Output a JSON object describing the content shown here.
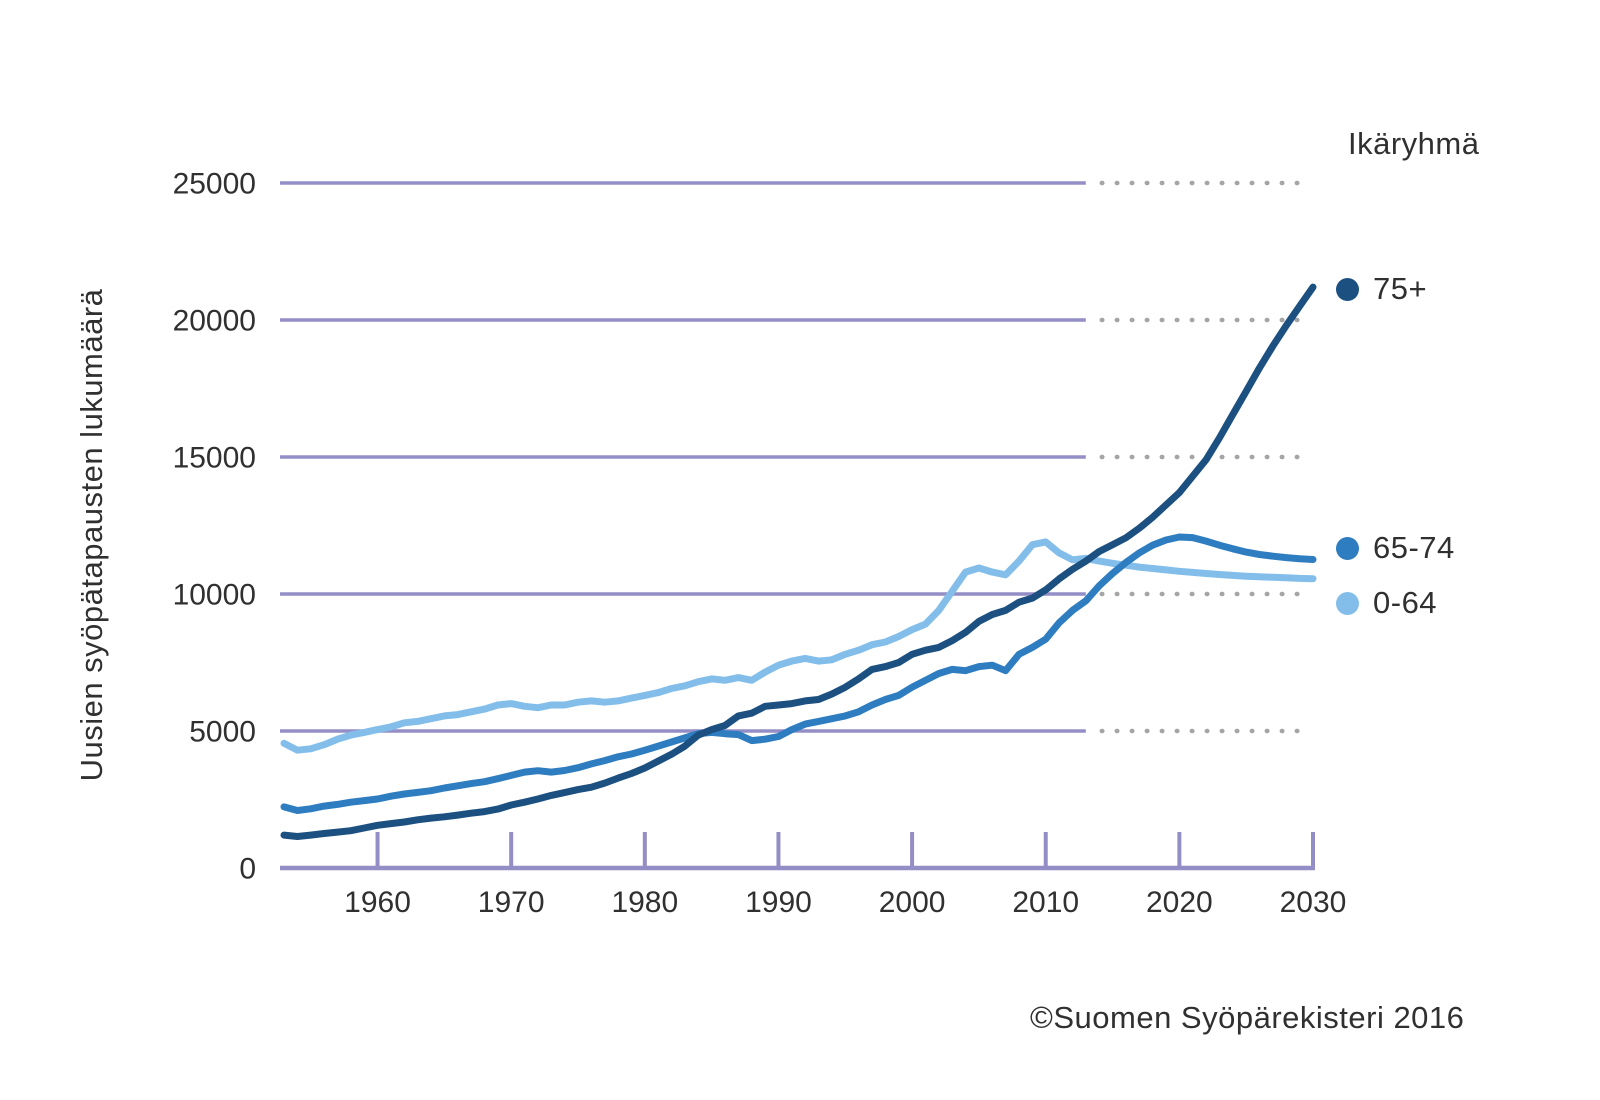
{
  "footer": {
    "copyright": "©Suomen Syöpärekisteri 2016"
  },
  "chart_data": {
    "type": "line",
    "title": "",
    "ylabel": "Uusien syöpätapausten lukumäärä",
    "legend_title": "Ikäryhmä",
    "legend_position": "right",
    "grid": "horizontal",
    "x_range": [
      1953,
      2030
    ],
    "observed_until": 2013,
    "x_ticks": [
      1960,
      1970,
      1980,
      1990,
      2000,
      2010,
      2020,
      2030
    ],
    "y_ticks": [
      0,
      5000,
      10000,
      15000,
      20000,
      25000
    ],
    "ylim": [
      0,
      25000
    ],
    "colors": {
      "grid_solid": "#938EC5",
      "grid_projection_dots": "#A5A5A5",
      "axis": "#938EC5",
      "text": "#303030"
    },
    "series": [
      {
        "name": "75+",
        "key": "75plus",
        "color": "#1B5080",
        "values": [
          1200,
          1150,
          1200,
          1260,
          1310,
          1360,
          1460,
          1560,
          1620,
          1680,
          1760,
          1820,
          1870,
          1930,
          2000,
          2060,
          2150,
          2300,
          2400,
          2520,
          2650,
          2750,
          2860,
          2950,
          3100,
          3280,
          3450,
          3650,
          3900,
          4150,
          4450,
          4850,
          5050,
          5200,
          5550,
          5650,
          5900,
          5950,
          6000,
          6100,
          6150,
          6350,
          6600,
          6900,
          7250,
          7350,
          7500,
          7800,
          7950,
          8050,
          8300,
          8600,
          9000,
          9250,
          9400,
          9700,
          9850,
          10150,
          10550,
          10900,
          11200,
          11550,
          11800,
          12050,
          12400,
          12800,
          13250,
          13700,
          14300,
          14900,
          15700,
          16550,
          17400,
          18250,
          19050,
          19800,
          20500,
          21200
        ]
      },
      {
        "name": "65-74",
        "key": "6574",
        "color": "#2E7DC0",
        "values": [
          2230,
          2100,
          2160,
          2260,
          2320,
          2400,
          2460,
          2520,
          2620,
          2700,
          2760,
          2820,
          2920,
          3000,
          3080,
          3150,
          3260,
          3380,
          3500,
          3550,
          3500,
          3560,
          3660,
          3800,
          3920,
          4060,
          4160,
          4300,
          4450,
          4600,
          4750,
          4900,
          4950,
          4900,
          4870,
          4650,
          4700,
          4800,
          5050,
          5250,
          5350,
          5450,
          5550,
          5700,
          5950,
          6150,
          6300,
          6600,
          6850,
          7100,
          7250,
          7200,
          7350,
          7400,
          7200,
          7800,
          8050,
          8350,
          8950,
          9400,
          9750,
          10300,
          10750,
          11150,
          11500,
          11780,
          11970,
          12080,
          12060,
          11930,
          11780,
          11650,
          11530,
          11440,
          11380,
          11330,
          11290,
          11260
        ]
      },
      {
        "name": "0-64",
        "key": "064",
        "color": "#83BEEA",
        "values": [
          4550,
          4300,
          4350,
          4500,
          4700,
          4850,
          4950,
          5050,
          5150,
          5300,
          5350,
          5450,
          5550,
          5600,
          5700,
          5800,
          5950,
          6000,
          5900,
          5850,
          5950,
          5950,
          6050,
          6100,
          6050,
          6100,
          6200,
          6300,
          6400,
          6550,
          6650,
          6800,
          6900,
          6850,
          6950,
          6850,
          7150,
          7400,
          7550,
          7650,
          7550,
          7600,
          7800,
          7950,
          8150,
          8250,
          8450,
          8700,
          8900,
          9400,
          10100,
          10800,
          10950,
          10800,
          10700,
          11200,
          11800,
          11900,
          11500,
          11250,
          11300,
          11200,
          11120,
          11050,
          10980,
          10930,
          10880,
          10830,
          10790,
          10750,
          10710,
          10680,
          10650,
          10630,
          10610,
          10590,
          10570,
          10560
        ]
      }
    ]
  }
}
